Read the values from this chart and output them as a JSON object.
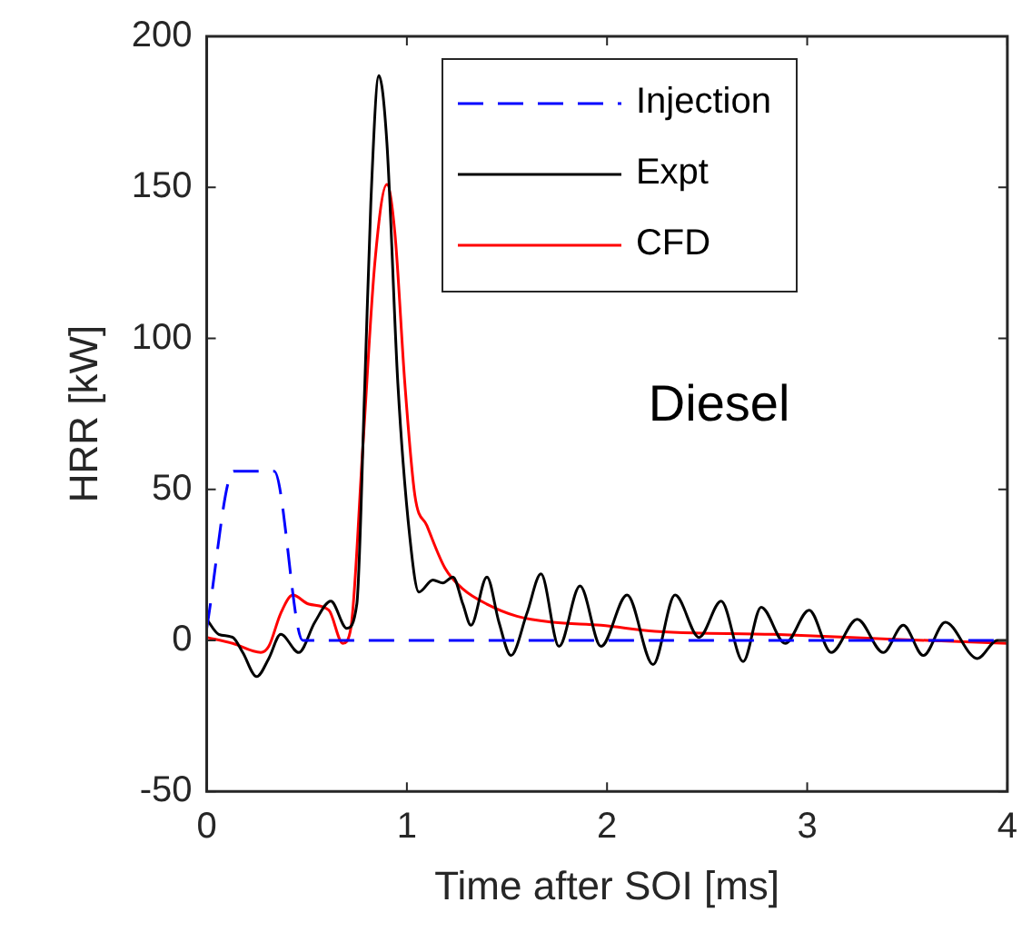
{
  "chart_data": {
    "type": "line",
    "xlabel": "Time after SOI [ms]",
    "ylabel": "HRR [kW]",
    "annotations": [
      "Diesel"
    ],
    "xlim": [
      0,
      4
    ],
    "xticks": [
      0,
      1,
      2,
      3,
      4
    ],
    "ylim": [
      -50,
      200
    ],
    "yticks": [
      -50,
      0,
      50,
      100,
      150,
      200
    ],
    "grid": false,
    "legend": "top right",
    "marker": "none",
    "series": [
      {
        "name": "Injection",
        "color": "#0000ff",
        "line_style": "dashed",
        "x": [
          0,
          0.134,
          0.337,
          0.48,
          4
        ],
        "values": [
          4,
          56,
          56,
          0,
          0
        ]
      },
      {
        "name": "Expt",
        "color": "#000000",
        "line_style": "solid",
        "x": [
          0,
          0.06,
          0.13,
          0.18,
          0.25,
          0.31,
          0.37,
          0.46,
          0.54,
          0.62,
          0.7,
          0.75,
          0.79,
          0.82,
          0.86,
          0.9,
          0.955,
          1.015,
          1.06,
          1.13,
          1.18,
          1.23,
          1.28,
          1.32,
          1.4,
          1.46,
          1.52,
          1.6,
          1.67,
          1.76,
          1.865,
          1.97,
          2.1,
          2.23,
          2.34,
          2.46,
          2.57,
          2.68,
          2.77,
          2.89,
          3.01,
          3.12,
          3.25,
          3.38,
          3.48,
          3.58,
          3.69,
          3.85,
          3.95,
          4
        ],
        "values": [
          7,
          2,
          1,
          -4,
          -12,
          -6,
          2,
          -4,
          6,
          13,
          4,
          12,
          85,
          145,
          187,
          165,
          85,
          34,
          16,
          20,
          19,
          21,
          12,
          5,
          21,
          6,
          -5,
          9,
          22,
          -2,
          18,
          -2,
          15,
          -8,
          15,
          1,
          13,
          -7,
          11,
          -1,
          10,
          -4,
          7,
          -4,
          5,
          -5,
          6,
          -6,
          0,
          0
        ]
      },
      {
        "name": "CFD",
        "color": "#ff0000",
        "line_style": "solid",
        "x": [
          0,
          0.13,
          0.27,
          0.31,
          0.37,
          0.43,
          0.51,
          0.61,
          0.68,
          0.72,
          0.78,
          0.84,
          0.9,
          0.94,
          0.99,
          1.04,
          1.1,
          1.19,
          1.28,
          1.4,
          1.55,
          1.73,
          1.97,
          2.24,
          2.83,
          3.43,
          4
        ],
        "values": [
          1,
          -1,
          -4,
          -2,
          9,
          15,
          12,
          10,
          -1,
          4,
          64,
          125,
          151,
          135,
          85,
          48,
          38,
          24,
          17,
          12,
          8,
          6,
          5,
          3,
          2,
          0.4,
          -1
        ]
      }
    ]
  }
}
